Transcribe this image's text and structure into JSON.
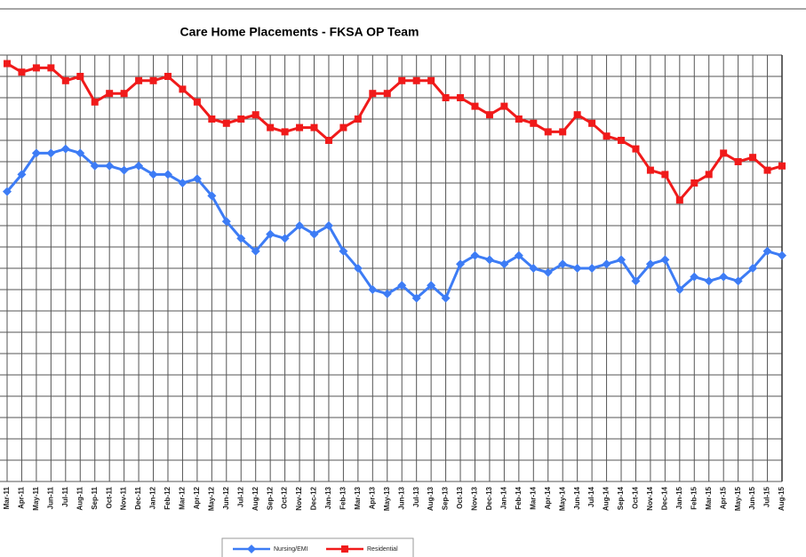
{
  "chart_data": {
    "type": "line",
    "title": "Care Home Placements - FKSA OP Team",
    "categories": [
      "Mar-11",
      "Apr-11",
      "May-11",
      "Jun-11",
      "Jul-11",
      "Aug-11",
      "Sep-11",
      "Oct-11",
      "Nov-11",
      "Dec-11",
      "Jan-12",
      "Feb-12",
      "Mar-12",
      "Apr-12",
      "May-12",
      "Jun-12",
      "Jul-12",
      "Aug-12",
      "Sep-12",
      "Oct-12",
      "Nov-12",
      "Dec-12",
      "Jan-13",
      "Feb-13",
      "Mar-13",
      "Apr-13",
      "May-13",
      "Jun-13",
      "Jul-13",
      "Aug-13",
      "Sep-13",
      "Oct-13",
      "Nov-13",
      "Dec-13",
      "Jan-14",
      "Feb-14",
      "Mar-14",
      "Apr-14",
      "May-14",
      "Jun-14",
      "Jul-14",
      "Aug-14",
      "Sep-14",
      "Oct-14",
      "Nov-14",
      "Dec-14",
      "Jan-15",
      "Feb-15",
      "Mar-15",
      "Apr-15",
      "May-15",
      "Jun-15",
      "Jul-15",
      "Aug-15"
    ],
    "series": [
      {
        "name": "Nursing/EMI",
        "color": "#3d7cf5",
        "marker": "diamond",
        "values": [
          13.6,
          14.4,
          15.4,
          15.4,
          15.6,
          15.4,
          14.8,
          14.8,
          14.6,
          14.8,
          14.4,
          14.4,
          14.0,
          14.2,
          13.4,
          12.2,
          11.4,
          10.8,
          11.6,
          11.4,
          12.0,
          11.6,
          12.0,
          10.8,
          10.0,
          9.0,
          8.8,
          9.2,
          8.6,
          9.2,
          8.6,
          10.2,
          10.6,
          10.4,
          10.2,
          10.6,
          10.0,
          9.8,
          10.2,
          10.0,
          10.0,
          10.2,
          10.4,
          9.4,
          10.2,
          10.4,
          9.0,
          9.6,
          9.4,
          9.6,
          9.4,
          10.0,
          10.8,
          10.6
        ]
      },
      {
        "name": "Residential",
        "color": "#f01a1a",
        "marker": "square",
        "values": [
          19.6,
          19.2,
          19.4,
          19.4,
          18.8,
          19.0,
          17.8,
          18.2,
          18.2,
          18.8,
          18.8,
          19.0,
          18.4,
          17.8,
          17.0,
          16.8,
          17.0,
          17.2,
          16.6,
          16.4,
          16.6,
          16.6,
          16.0,
          16.6,
          17.0,
          18.2,
          18.2,
          18.8,
          18.8,
          18.8,
          18.0,
          18.0,
          17.6,
          17.2,
          17.6,
          17.0,
          16.8,
          16.4,
          16.4,
          17.2,
          16.8,
          16.2,
          16.0,
          15.6,
          14.6,
          14.4,
          13.2,
          14.0,
          14.4,
          15.4,
          15.0,
          15.2,
          14.6,
          14.8
        ]
      }
    ],
    "ylim": [
      0,
      20
    ],
    "yticks": [
      0,
      1,
      2,
      3,
      4,
      5,
      6,
      7,
      8,
      9,
      10,
      11,
      12,
      13,
      14,
      15,
      16,
      17,
      18,
      19,
      20
    ],
    "grid": true
  }
}
